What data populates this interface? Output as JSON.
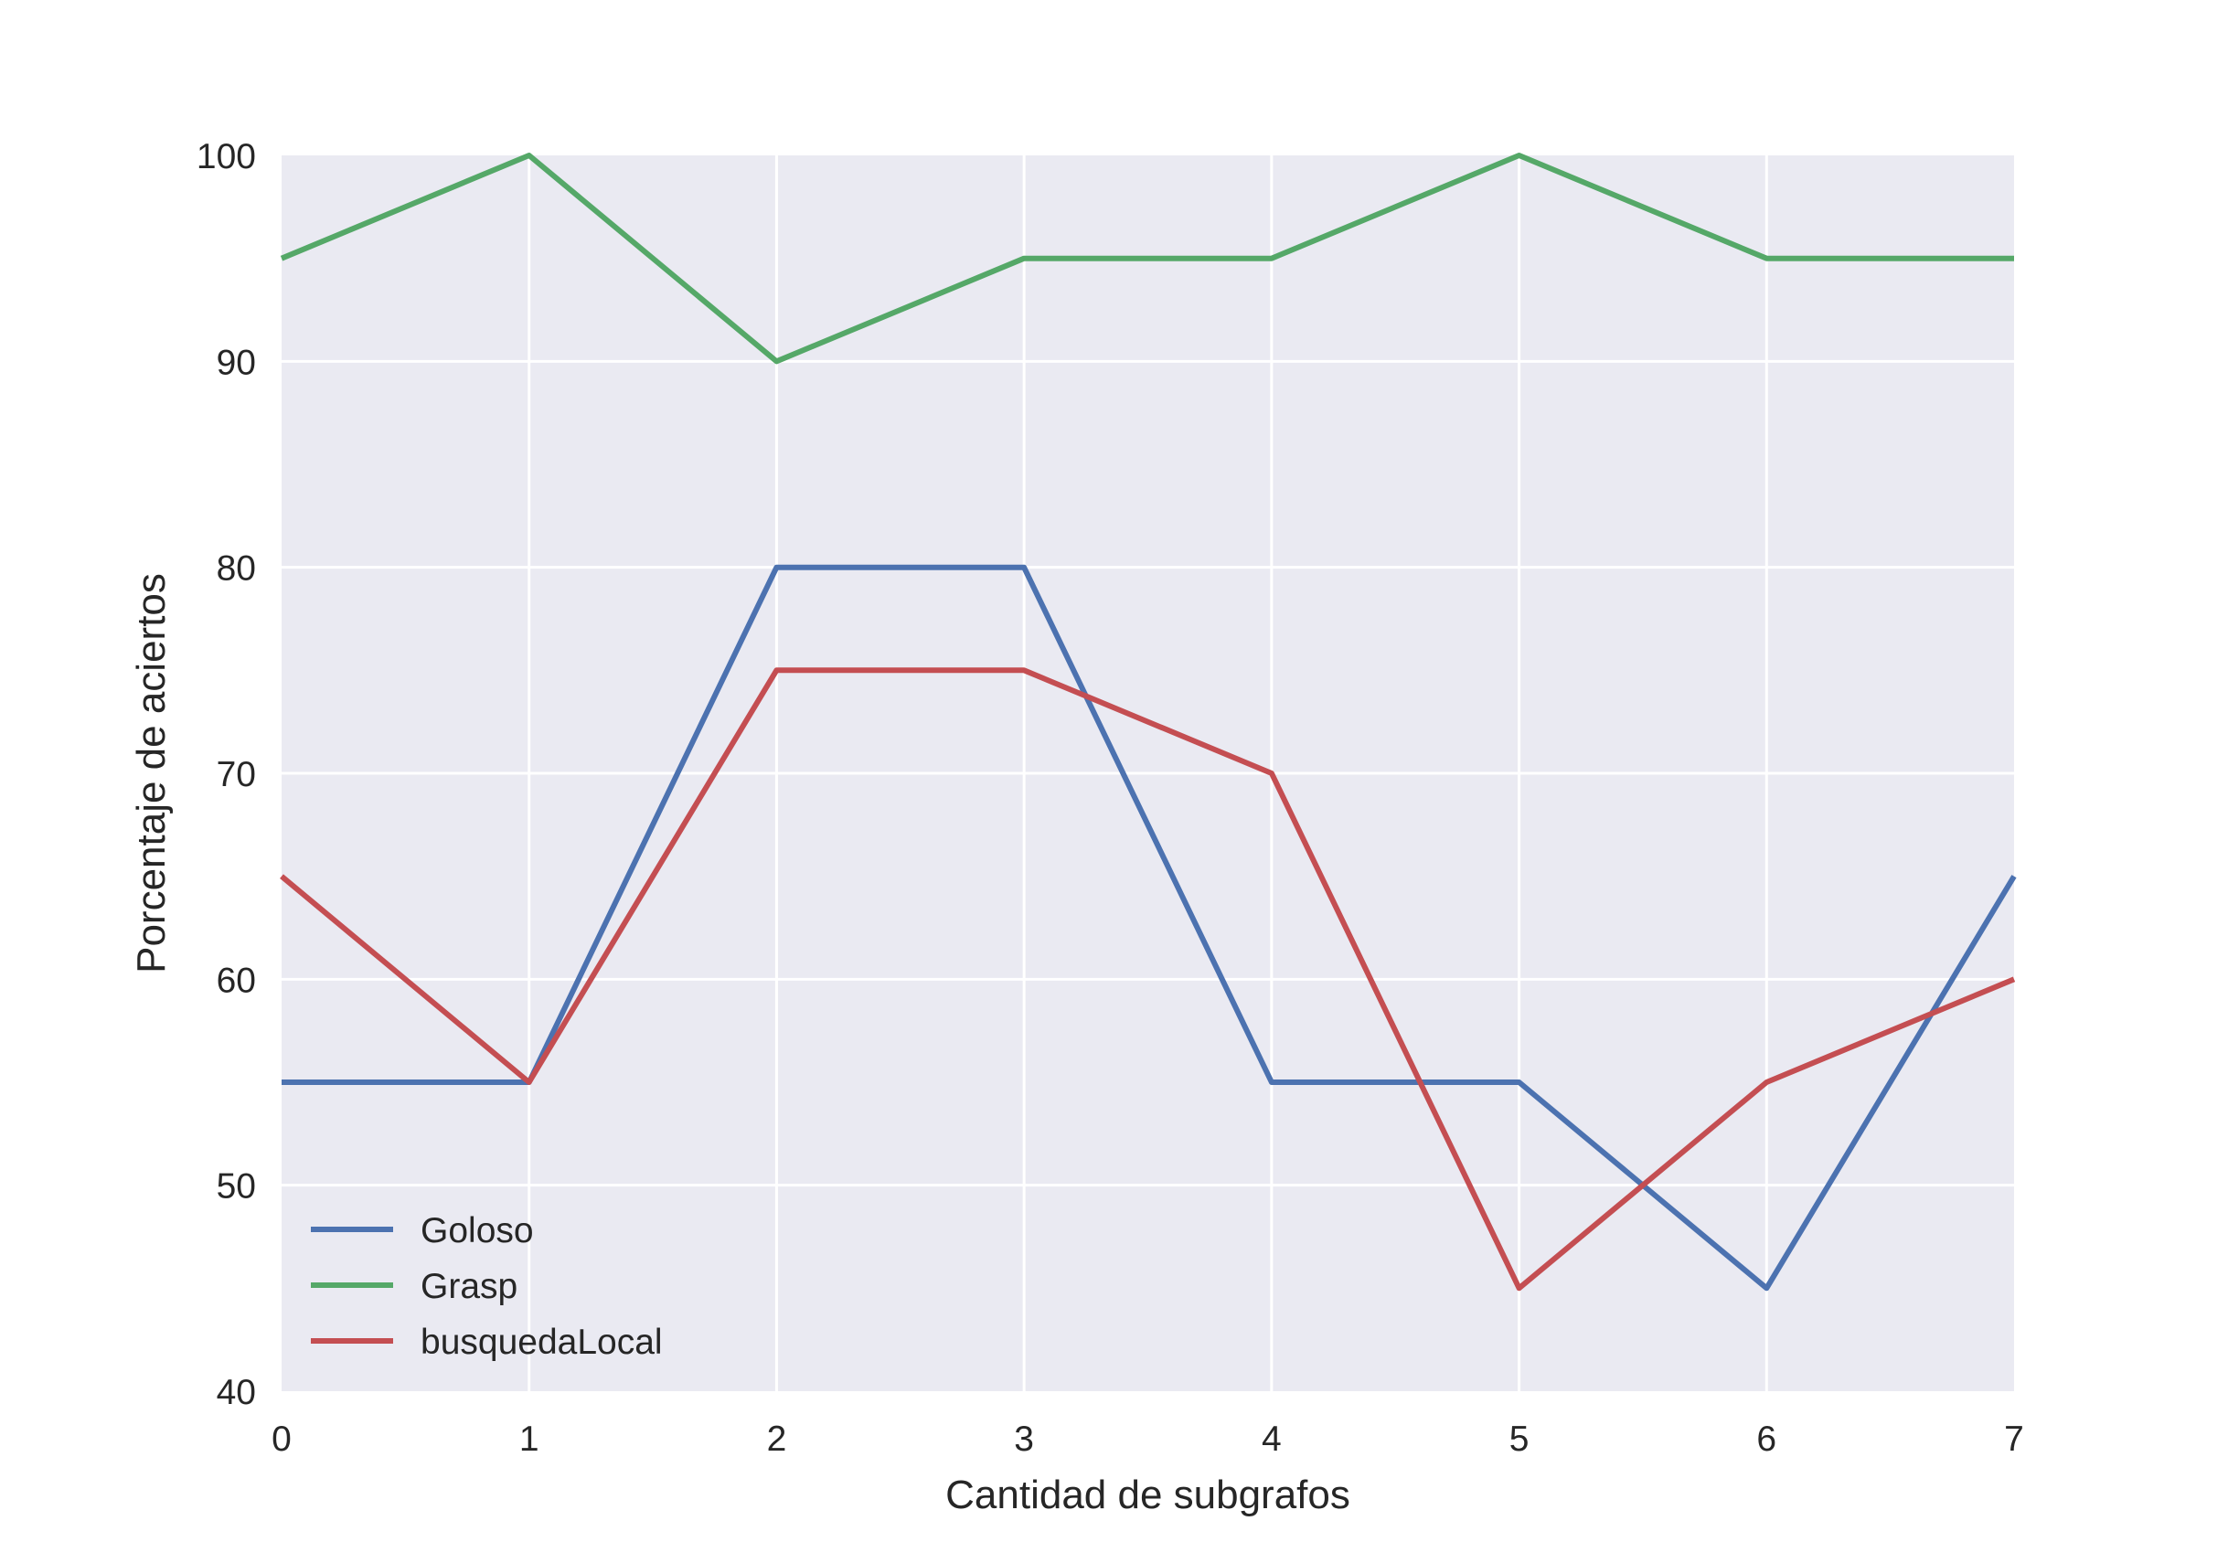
{
  "chart_data": {
    "type": "line",
    "title": "",
    "xlabel": "Cantidad de subgrafos",
    "ylabel": "Porcentaje de aciertos",
    "x": [
      0,
      1,
      2,
      3,
      4,
      5,
      6,
      7
    ],
    "xlim": [
      0,
      7
    ],
    "ylim": [
      40,
      100
    ],
    "xticks": [
      "0",
      "1",
      "2",
      "3",
      "4",
      "5",
      "6",
      "7"
    ],
    "yticks": [
      "40",
      "50",
      "60",
      "70",
      "80",
      "90",
      "100"
    ],
    "grid": true,
    "legend_position": "lower-left",
    "background_color": "#EAEAF2",
    "grid_color": "#FFFFFF",
    "series": [
      {
        "name": "Goloso",
        "color": "#4C72B0",
        "values": [
          55,
          55,
          80,
          80,
          55,
          55,
          45,
          65
        ]
      },
      {
        "name": "Grasp",
        "color": "#55A868",
        "values": [
          95,
          100,
          90,
          95,
          95,
          100,
          95,
          95
        ]
      },
      {
        "name": "busquedaLocal",
        "color": "#C44E52",
        "values": [
          65,
          55,
          75,
          75,
          70,
          45,
          55,
          60
        ]
      }
    ]
  }
}
